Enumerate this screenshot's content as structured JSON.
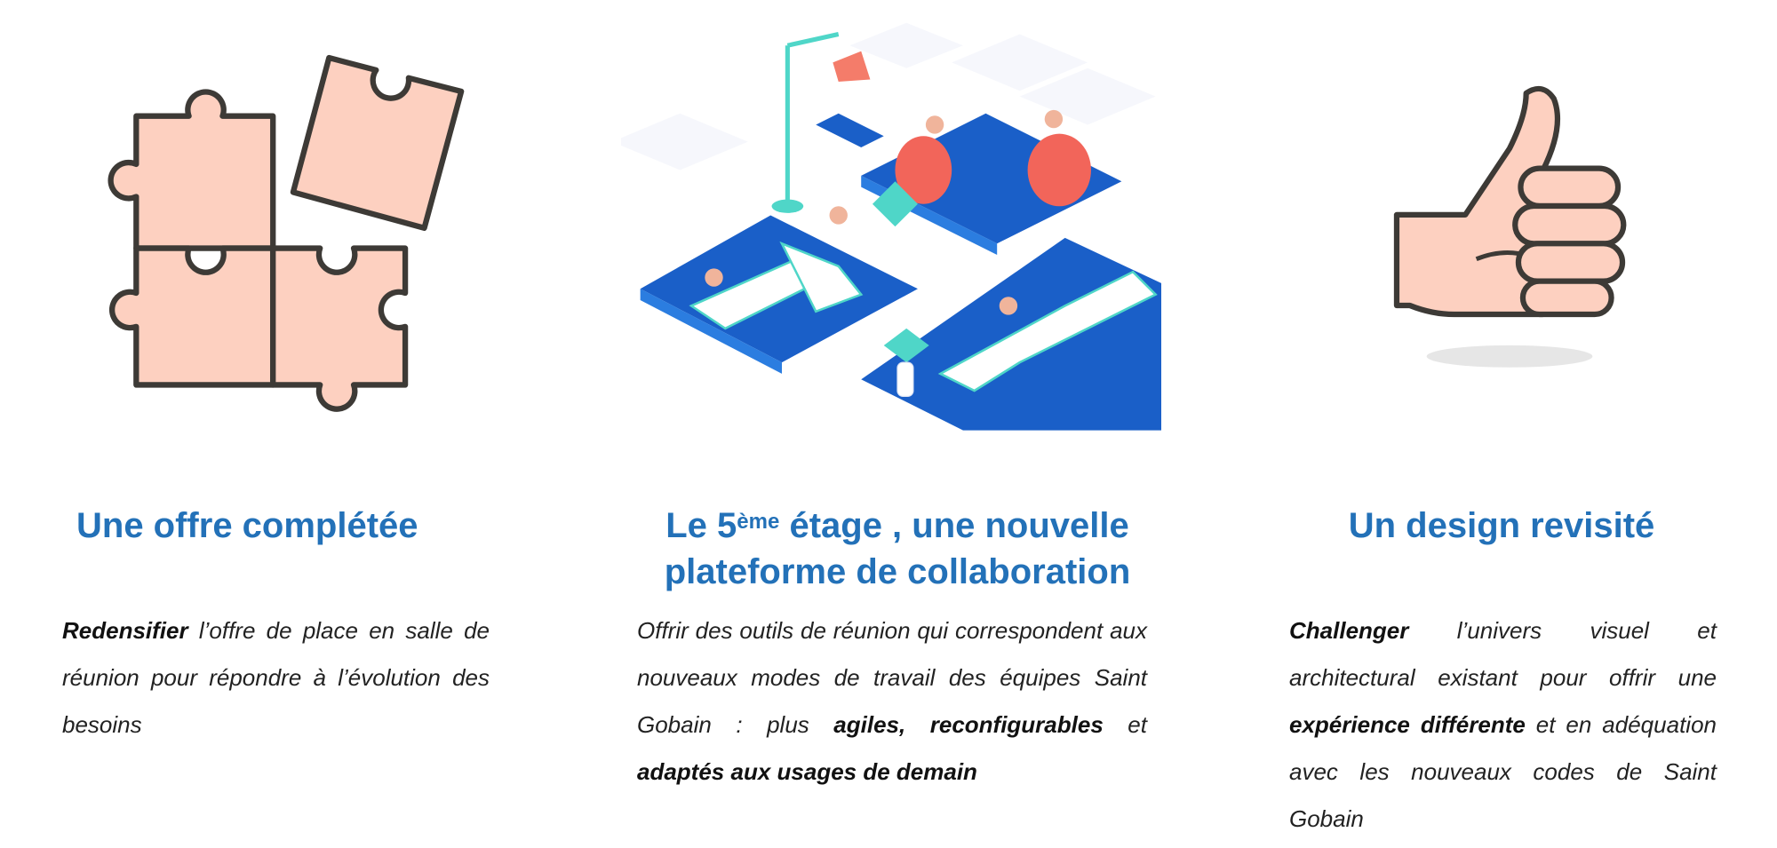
{
  "colors": {
    "title": "#2371b8",
    "illustration_fill": "#fdd0c0",
    "illustration_stroke": "#3d3a36",
    "office_blue": "#1a5fc8"
  },
  "columns": [
    {
      "icon": "puzzle-icon",
      "title": "Une offre complétée",
      "body": [
        {
          "text": "Redensifier",
          "bold": true
        },
        {
          "text": " l’offre de place en salle de réunion pour répondre à l’évolution des besoins",
          "bold": false
        }
      ]
    },
    {
      "icon": "isometric-office-illustration",
      "title_parts": {
        "before": "Le 5",
        "sup": "ème",
        "after": " étage , une nouvelle plateforme de collaboration"
      },
      "body": [
        {
          "text": "Offrir des outils de réunion qui correspondent aux nouveaux modes de travail des équipes Saint Gobain : plus ",
          "bold": false
        },
        {
          "text": "agiles, reconfigurables",
          "bold": true
        },
        {
          "text": " et ",
          "bold": false
        },
        {
          "text": "adaptés aux usages de demain",
          "bold": true
        }
      ]
    },
    {
      "icon": "thumbs-up-icon",
      "title": "Un design revisité",
      "body": [
        {
          "text": "Challenger",
          "bold": true
        },
        {
          "text": " l’univers visuel et architectural existant pour offrir une ",
          "bold": false
        },
        {
          "text": "expérience différente",
          "bold": true
        },
        {
          "text": " et en adéquation  avec les nouveaux codes de Saint Gobain",
          "bold": false
        }
      ]
    }
  ]
}
